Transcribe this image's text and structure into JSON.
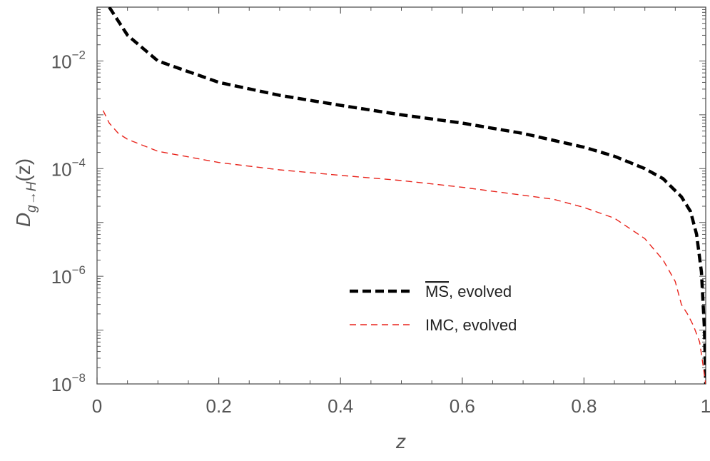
{
  "chart_data": {
    "type": "line",
    "xlabel": "z",
    "ylabel": {
      "base": "D",
      "subscript": "g→H",
      "suffix": "(z)"
    },
    "xlim": [
      0,
      1
    ],
    "ylim": [
      1e-08,
      0.1
    ],
    "yscale": "log",
    "grid": false,
    "legend_placement": "lower-center",
    "x_ticks": [
      {
        "value": 0,
        "label": "0"
      },
      {
        "value": 0.2,
        "label": "0.2"
      },
      {
        "value": 0.4,
        "label": "0.4"
      },
      {
        "value": 0.6,
        "label": "0.6"
      },
      {
        "value": 0.8,
        "label": "0.8"
      },
      {
        "value": 1,
        "label": "1"
      }
    ],
    "y_ticks": [
      {
        "value": 0.01,
        "base": "10",
        "exp": "−2"
      },
      {
        "value": 0.0001,
        "base": "10",
        "exp": "−4"
      },
      {
        "value": 1e-06,
        "base": "10",
        "exp": "−6"
      },
      {
        "value": 1e-08,
        "base": "10",
        "exp": "−8"
      }
    ],
    "series": [
      {
        "name": "MS, evolved",
        "legend_overline": "MS",
        "legend_rest": ",  evolved",
        "color": "#000000",
        "style": "thick-dashed",
        "x": [
          0.02,
          0.05,
          0.1,
          0.2,
          0.3,
          0.4,
          0.5,
          0.6,
          0.7,
          0.8,
          0.85,
          0.9,
          0.93,
          0.96,
          0.975,
          0.985,
          0.993,
          0.998,
          1.0
        ],
        "y": [
          0.1,
          0.03,
          0.01,
          0.004,
          0.0023,
          0.0015,
          0.001,
          0.0007,
          0.00045,
          0.00025,
          0.00017,
          0.0001,
          6.5e-05,
          3e-05,
          1.6e-05,
          6e-06,
          1.2e-06,
          1e-07,
          1e-08
        ]
      },
      {
        "name": "IMC, evolved",
        "color": "#e8241c",
        "style": "thin-dashed",
        "x": [
          0.01,
          0.02,
          0.035,
          0.05,
          0.1,
          0.2,
          0.3,
          0.4,
          0.5,
          0.6,
          0.7,
          0.75,
          0.8,
          0.85,
          0.9,
          0.93,
          0.95,
          0.96,
          0.97,
          0.98,
          0.99,
          0.995,
          1.0
        ],
        "y": [
          0.0012,
          0.0007,
          0.00045,
          0.00035,
          0.00021,
          0.00013,
          9.5e-05,
          7.5e-05,
          6e-05,
          4.5e-05,
          3.2e-05,
          2.7e-05,
          1.9e-05,
          1.2e-05,
          5e-06,
          2e-06,
          8e-07,
          3e-07,
          2e-07,
          1.2e-07,
          6e-08,
          2.5e-08,
          1e-08
        ]
      }
    ]
  }
}
